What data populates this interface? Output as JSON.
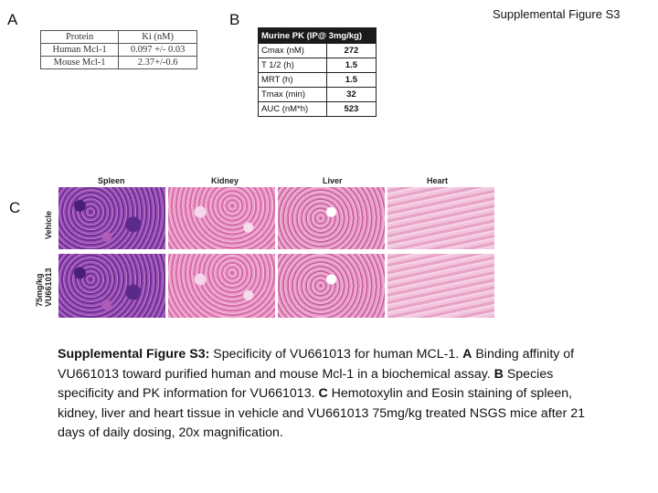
{
  "figure_title": "Supplemental Figure S3",
  "panels": {
    "a": "A",
    "b": "B",
    "c": "C"
  },
  "table_a": {
    "header": [
      "Protein",
      "Ki (nM)"
    ],
    "rows": [
      [
        "Human Mcl-1",
        "0.097 +/- 0.03"
      ],
      [
        "Mouse Mcl-1",
        "2.37+/-0.6"
      ]
    ]
  },
  "table_b": {
    "header": "Murine PK (IP@ 3mg/kg)",
    "rows": [
      [
        "Cmax (nM)",
        "272"
      ],
      [
        "T 1/2 (h)",
        "1.5"
      ],
      [
        "MRT (h)",
        "1.5"
      ],
      [
        "Tmax (min)",
        "32"
      ],
      [
        "AUC (nM*h)",
        "523"
      ]
    ]
  },
  "histology": {
    "columns": [
      "Spleen",
      "Kidney",
      "Liver",
      "Heart"
    ],
    "rows": [
      "Vehicle",
      "75mg/kg VU661013"
    ]
  },
  "caption": {
    "lead": "Supplemental Figure S3:",
    "text": " Specificity of VU661013 for human MCL-1. ",
    "a_label": "A",
    "a_text": " Binding affinity of VU661013 toward purified human and mouse Mcl-1 in a biochemical assay.  ",
    "b_label": "B",
    "b_text": " Species specificity and PK information for VU661013.  ",
    "c_label": "C",
    "c_text": " Hemotoxylin and Eosin staining of spleen, kidney, liver and heart tissue in vehicle and VU661013 75mg/kg treated NSGS mice after 21 days of daily dosing, 20x magnification."
  }
}
